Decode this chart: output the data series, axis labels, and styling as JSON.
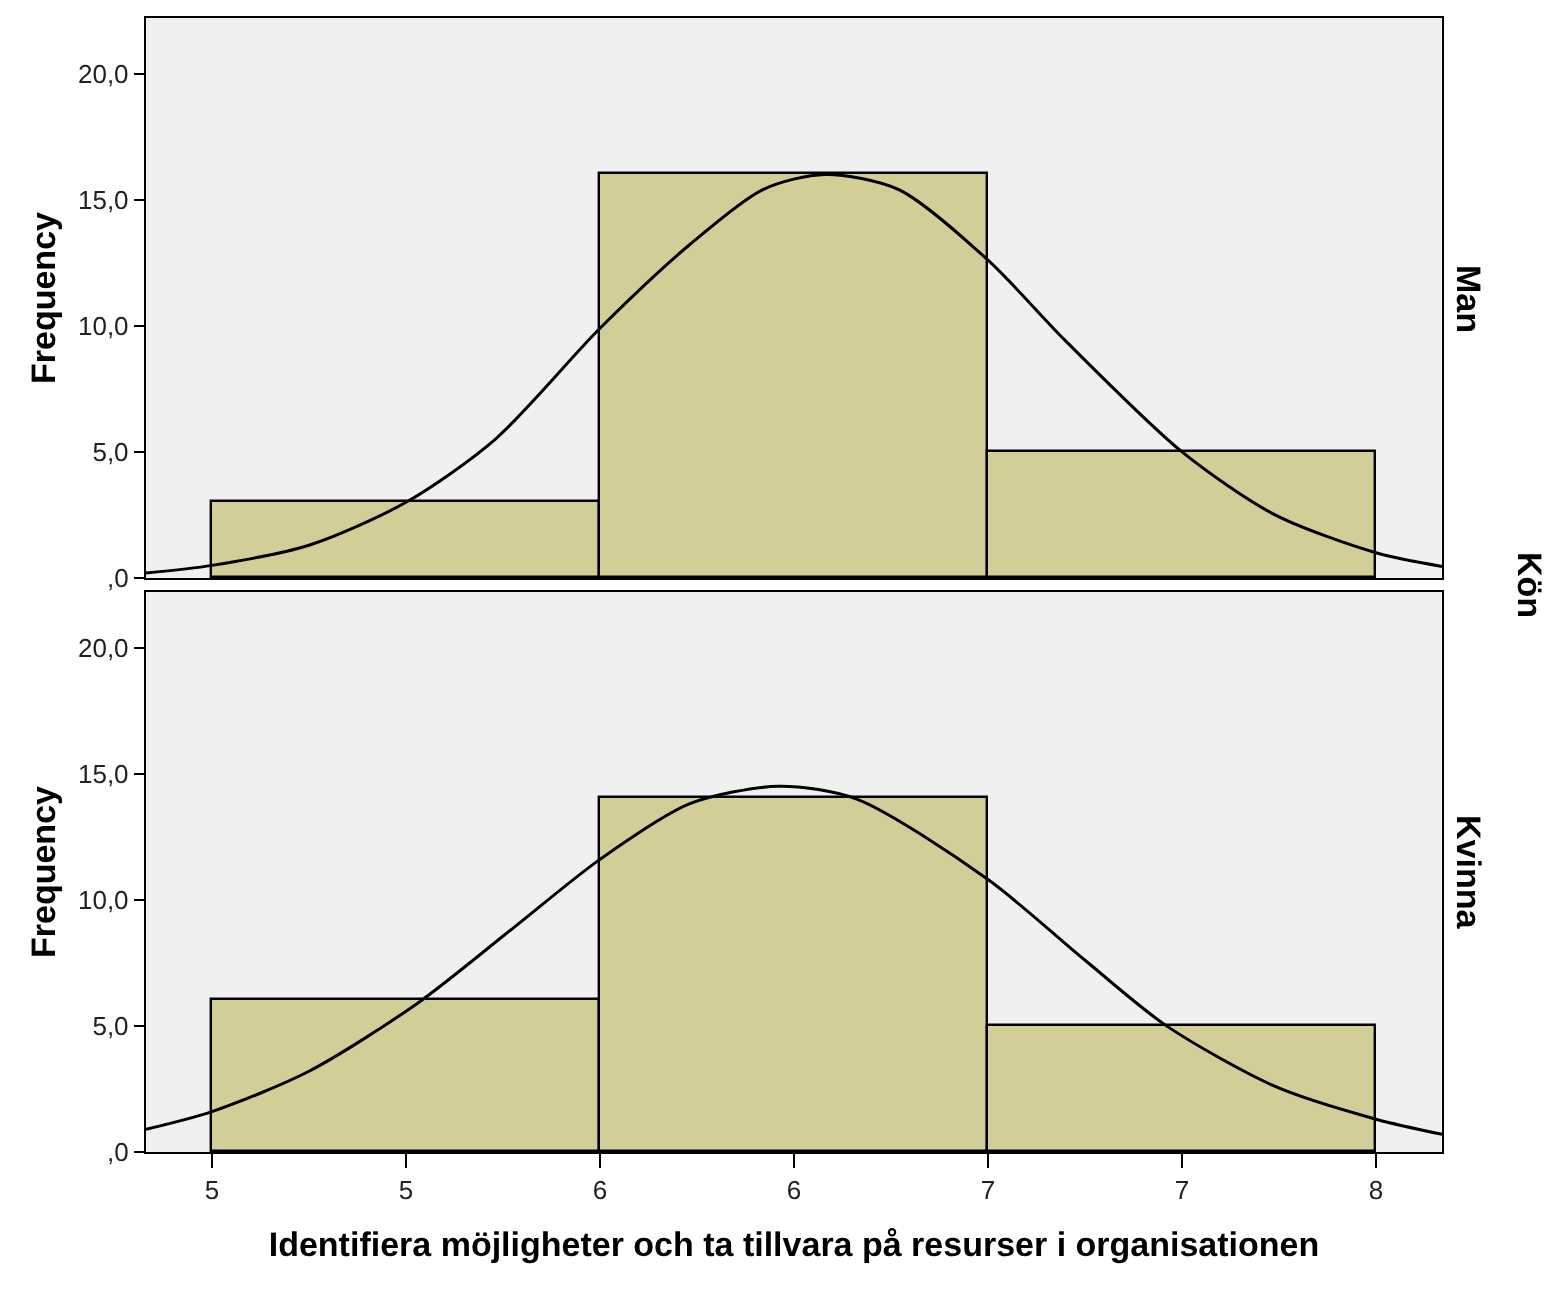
{
  "chart_data": [
    {
      "type": "histogram",
      "ylabel": "Frequency",
      "y2label": "Man",
      "annotations": [
        "Kön"
      ],
      "bins": [
        4.5,
        5.5,
        6.5,
        7.5
      ],
      "values": [
        3,
        16,
        5
      ],
      "color": "#d3ce97",
      "series": [
        {
          "type": "line",
          "color": "#000000",
          "x": [
            4.33,
            4.5,
            4.75,
            5.0,
            5.23,
            5.5,
            5.73,
            5.92,
            6.08,
            6.27,
            6.5,
            6.7,
            7.0,
            7.24,
            7.5,
            7.67
          ],
          "values": [
            0.2,
            0.5,
            1.3,
            3.0,
            5.5,
            9.9,
            13.2,
            15.4,
            16.0,
            15.4,
            12.6,
            9.4,
            5.0,
            2.5,
            1.0,
            0.46
          ]
        }
      ],
      "xlim": [
        4.33,
        7.67
      ],
      "ylim": [
        0,
        22.2
      ],
      "yticks": [
        {
          "value": 0,
          "label": ",0"
        },
        {
          "value": 5,
          "label": "5,0"
        },
        {
          "value": 10,
          "label": "10,0"
        },
        {
          "value": 15,
          "label": "15,0"
        },
        {
          "value": 20,
          "label": "20,0"
        }
      ],
      "tick_labels": "y"
    },
    {
      "type": "histogram",
      "xlabel": "Identifiera möjligheter och ta tillvara på resurser i organisationen",
      "ylabel": "Frequency",
      "y2label": "Kvinna",
      "bins": [
        4.5,
        5.5,
        6.5,
        7.5
      ],
      "values": [
        6,
        14,
        5
      ],
      "color": "#d3ce97",
      "series": [
        {
          "type": "line",
          "color": "#000000",
          "x": [
            4.33,
            4.5,
            4.75,
            5.03,
            5.27,
            5.5,
            5.73,
            5.96,
            6.16,
            6.5,
            6.75,
            6.96,
            7.24,
            7.5,
            7.67
          ],
          "values": [
            0.9,
            1.6,
            3.2,
            5.9,
            8.8,
            11.6,
            13.8,
            14.5,
            14.0,
            10.8,
            7.6,
            5.0,
            2.6,
            1.3,
            0.7
          ]
        }
      ],
      "xlim": [
        4.33,
        7.67
      ],
      "xticks": [
        {
          "value": 4.5,
          "label": "5"
        },
        5,
        {
          "value": 5.5,
          "label": "6"
        },
        6,
        {
          "value": 6.5,
          "label": "7"
        },
        7,
        {
          "value": 7.5,
          "label": "8"
        }
      ],
      "ylim": [
        0,
        22.2
      ],
      "yticks": [
        {
          "value": 0,
          "label": ",0"
        },
        {
          "value": 5,
          "label": "5,0"
        },
        {
          "value": 10,
          "label": "10,0"
        },
        {
          "value": 15,
          "label": "15,0"
        },
        {
          "value": 20,
          "label": "20,0"
        }
      ]
    }
  ]
}
